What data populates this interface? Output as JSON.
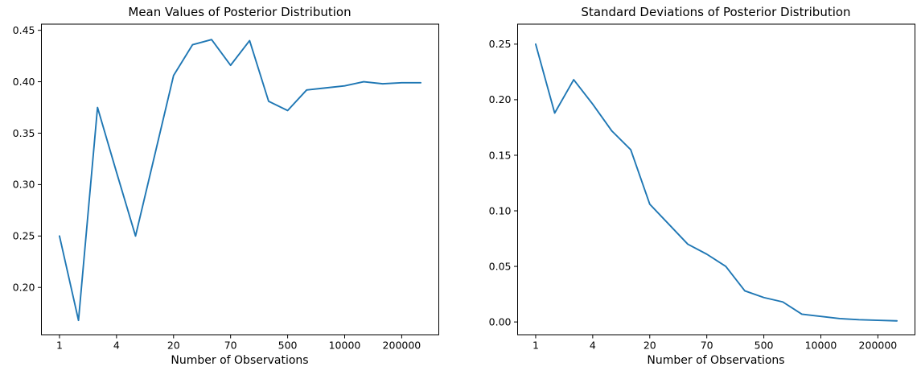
{
  "colors": {
    "line": "#1f77b4",
    "axis": "#000000",
    "text": "#000000",
    "background": "#ffffff"
  },
  "chart_data": [
    {
      "type": "line",
      "title": "Mean Values of Posterior Distribution",
      "xlabel": "Number of Observations",
      "ylabel": "",
      "grid": false,
      "legend": "none",
      "x_tick_labels": [
        "1",
        "4",
        "20",
        "70",
        "500",
        "10000",
        "200000"
      ],
      "x_tick_indices": [
        0,
        3,
        6,
        9,
        12,
        15,
        18
      ],
      "xlim_index": [
        -0.95,
        19.95
      ],
      "yticks": [
        0.2,
        0.25,
        0.3,
        0.35,
        0.4,
        0.45
      ],
      "ylim": [
        0.154,
        0.456
      ],
      "values": [
        0.25,
        0.168,
        0.375,
        0.312,
        0.25,
        0.328,
        0.406,
        0.436,
        0.441,
        0.416,
        0.44,
        0.381,
        0.372,
        0.392,
        0.394,
        0.396,
        0.4,
        0.398,
        0.399,
        0.399
      ]
    },
    {
      "type": "line",
      "title": "Standard Deviations of Posterior Distribution",
      "xlabel": "Number of Observations",
      "ylabel": "",
      "grid": false,
      "legend": "none",
      "x_tick_labels": [
        "1",
        "4",
        "20",
        "70",
        "500",
        "10000",
        "200000"
      ],
      "x_tick_indices": [
        0,
        3,
        6,
        9,
        12,
        15,
        18
      ],
      "xlim_index": [
        -0.95,
        19.95
      ],
      "yticks": [
        0.0,
        0.05,
        0.1,
        0.15,
        0.2,
        0.25
      ],
      "ylim": [
        -0.0115,
        0.268
      ],
      "values": [
        0.25,
        0.188,
        0.218,
        0.196,
        0.172,
        0.155,
        0.106,
        0.088,
        0.07,
        0.061,
        0.05,
        0.028,
        0.022,
        0.018,
        0.007,
        0.005,
        0.003,
        0.002,
        0.0015,
        0.001
      ]
    }
  ]
}
